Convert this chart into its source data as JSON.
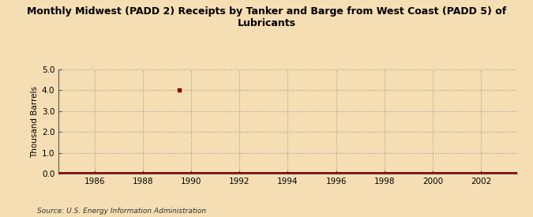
{
  "title": "Monthly Midwest (PADD 2) Receipts by Tanker and Barge from West Coast (PADD 5) of\nLubricants",
  "ylabel": "Thousand Barrels",
  "source": "Source: U.S. Energy Information Administration",
  "xlim": [
    1984.5,
    2003.5
  ],
  "ylim": [
    0.0,
    5.0
  ],
  "xticks": [
    1986,
    1988,
    1990,
    1992,
    1994,
    1996,
    1998,
    2000,
    2002
  ],
  "yticks": [
    0.0,
    1.0,
    2.0,
    3.0,
    4.0,
    5.0
  ],
  "background_color": "#f5deb3",
  "plot_background_color": "#f5deb3",
  "line_color": "#8b0000",
  "marker_x": 1989.5,
  "marker_y": 4.0,
  "marker_color": "#8b0000",
  "line_data_x": [
    1984.5,
    2003.5
  ],
  "line_data_y": [
    0.0,
    0.0
  ]
}
